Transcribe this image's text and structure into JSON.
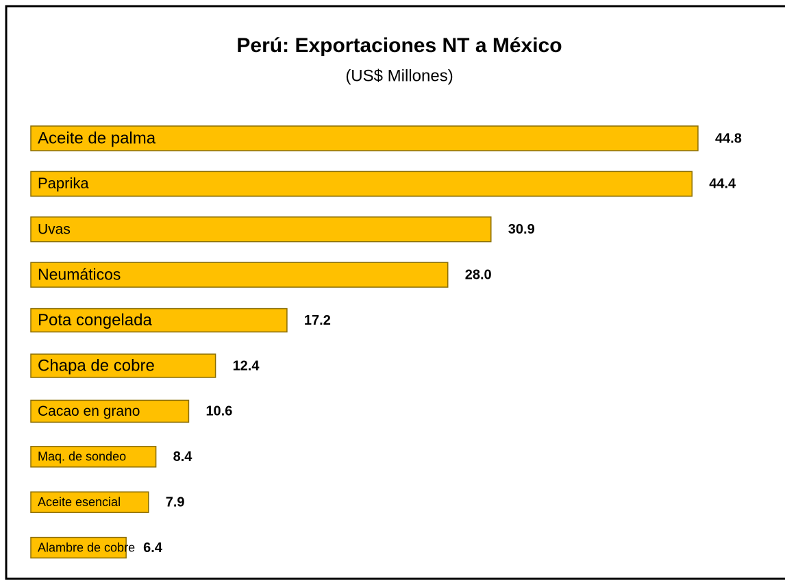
{
  "chart_data": {
    "type": "bar",
    "orientation": "horizontal",
    "title": "Perú: Exportaciones NT a México",
    "subtitle": "(US$ Millones)",
    "categories": [
      "Aceite de palma",
      "Paprika",
      "Uvas",
      "Neumáticos",
      "Pota congelada",
      "Chapa de cobre",
      "Cacao en grano",
      "Maq. de sondeo",
      "Aceite esencial",
      "Alambre de cobre"
    ],
    "values": [
      44.8,
      44.4,
      30.9,
      28.0,
      17.2,
      12.4,
      10.6,
      8.4,
      7.9,
      6.4
    ],
    "value_labels": [
      "44.8",
      "44.4",
      "30.9",
      "28.0",
      "17.2",
      "12.4",
      "10.6",
      "8.4",
      "7.9",
      "6.4"
    ],
    "color": "#FFC000"
  }
}
